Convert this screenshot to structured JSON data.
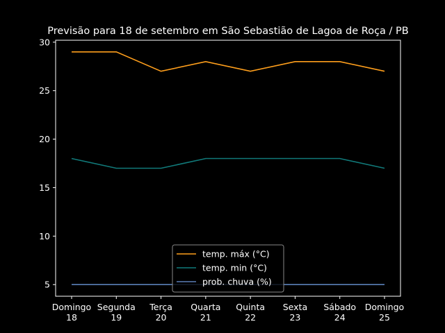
{
  "chart_data": {
    "type": "line",
    "title": "Previsão para 18 de setembro em São Sebastião de Lagoa de Roça / PB",
    "xlabel": "",
    "ylabel": "",
    "categories": [
      [
        "Domingo",
        "18"
      ],
      [
        "Segunda",
        "19"
      ],
      [
        "Terça",
        "20"
      ],
      [
        "Quarta",
        "21"
      ],
      [
        "Quinta",
        "22"
      ],
      [
        "Sexta",
        "23"
      ],
      [
        "Sábado",
        "24"
      ],
      [
        "Domingo",
        "25"
      ]
    ],
    "yticks": [
      5,
      10,
      15,
      20,
      25,
      30
    ],
    "ylim": [
      3.8,
      30.2
    ],
    "grid": false,
    "legend": "lower-center",
    "series": [
      {
        "name": "temp. máx (°C)",
        "color": "#ff9f1c",
        "values": [
          29,
          29,
          27,
          28,
          27,
          28,
          28,
          27
        ]
      },
      {
        "name": "temp. min (°C)",
        "color": "#117a7a",
        "values": [
          18,
          17,
          17,
          18,
          18,
          18,
          18,
          17
        ]
      },
      {
        "name": "prob. chuva (%)",
        "color": "#5a7fb8",
        "values": [
          5,
          5,
          5,
          5,
          5,
          5,
          5,
          5
        ]
      }
    ]
  }
}
